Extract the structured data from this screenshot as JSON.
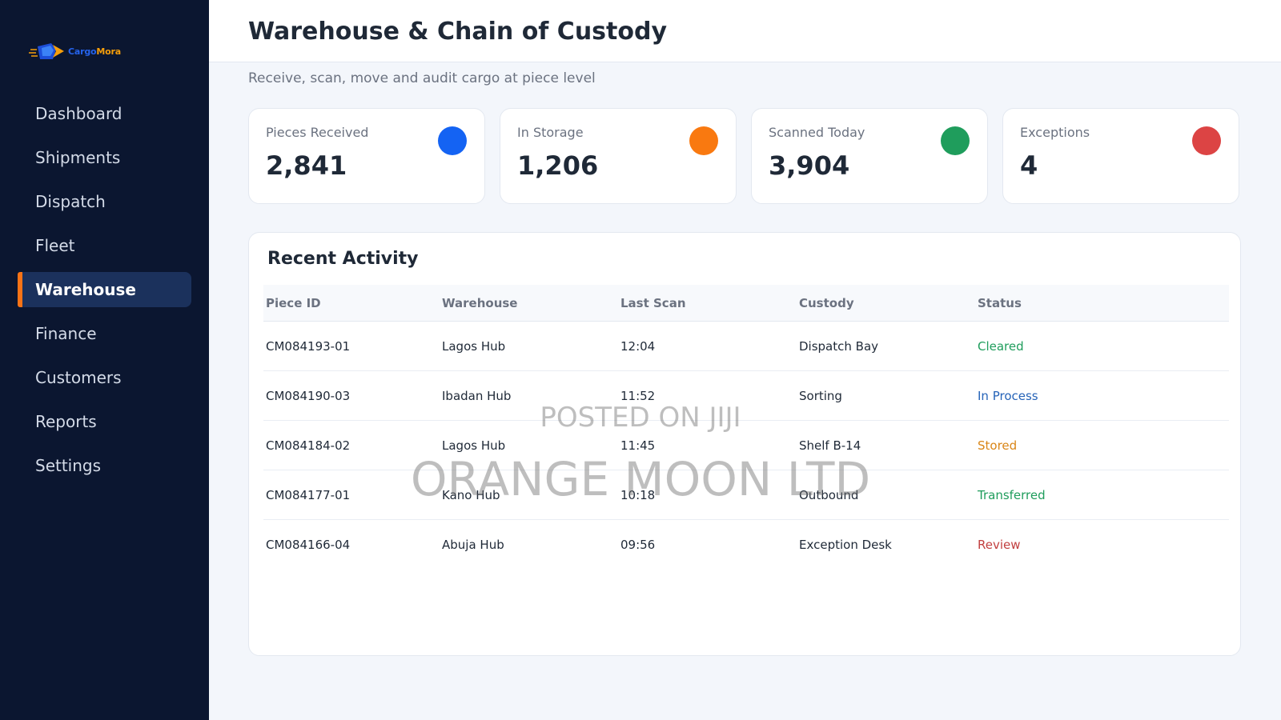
{
  "brand": {
    "name_part1": "Cargo",
    "name_part2": "Mora"
  },
  "sidebar": {
    "items": [
      {
        "label": "Dashboard",
        "active": false
      },
      {
        "label": "Shipments",
        "active": false
      },
      {
        "label": "Dispatch",
        "active": false
      },
      {
        "label": "Fleet",
        "active": false
      },
      {
        "label": "Warehouse",
        "active": true
      },
      {
        "label": "Finance",
        "active": false
      },
      {
        "label": "Customers",
        "active": false
      },
      {
        "label": "Reports",
        "active": false
      },
      {
        "label": "Settings",
        "active": false
      }
    ]
  },
  "header": {
    "title": "Warehouse & Chain of Custody",
    "subtitle": "Receive, scan, move and audit cargo at piece level"
  },
  "stats": [
    {
      "label": "Pieces Received",
      "value": "2,841",
      "color": "#1463f3"
    },
    {
      "label": "In Storage",
      "value": "1,206",
      "color": "#f97910"
    },
    {
      "label": "Scanned Today",
      "value": "3,904",
      "color": "#1f9d5c"
    },
    {
      "label": "Exceptions",
      "value": "4",
      "color": "#dc4444"
    }
  ],
  "activity": {
    "title": "Recent Activity",
    "columns": [
      "Piece ID",
      "Warehouse",
      "Last Scan",
      "Custody",
      "Status"
    ],
    "rows": [
      {
        "piece_id": "CM084193-01",
        "warehouse": "Lagos Hub",
        "last_scan": "12:04",
        "custody": "Dispatch Bay",
        "status": "Cleared",
        "status_color": "#1f9d5c"
      },
      {
        "piece_id": "CM084190-03",
        "warehouse": "Ibadan Hub",
        "last_scan": "11:52",
        "custody": "Sorting",
        "status": "In Process",
        "status_color": "#2563b8"
      },
      {
        "piece_id": "CM084184-02",
        "warehouse": "Lagos Hub",
        "last_scan": "11:45",
        "custody": "Shelf B-14",
        "status": "Stored",
        "status_color": "#d98516"
      },
      {
        "piece_id": "CM084177-01",
        "warehouse": "Kano Hub",
        "last_scan": "10:18",
        "custody": "Outbound",
        "status": "Transferred",
        "status_color": "#1f9d5c"
      },
      {
        "piece_id": "CM084166-04",
        "warehouse": "Abuja Hub",
        "last_scan": "09:56",
        "custody": "Exception Desk",
        "status": "Review",
        "status_color": "#c24040"
      }
    ]
  },
  "watermark": {
    "line1": "POSTED ON JIJI",
    "line2": "ORANGE MOON LTD"
  }
}
